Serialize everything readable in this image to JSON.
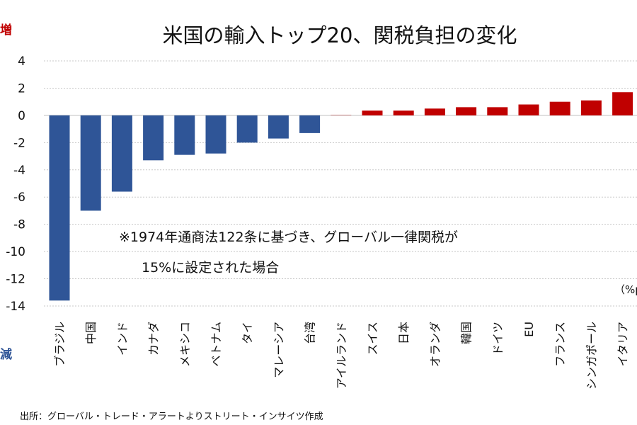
{
  "chart_data": {
    "type": "bar",
    "title": "米国の輸入トップ20、関税負担の変化",
    "unit_label": "（%p）",
    "label_increase": "増",
    "label_decrease": "減",
    "annotation_line1": "※1974年通商法122条に基づき、グローバル一律関税が",
    "annotation_line2": "15%に設定された場合",
    "source": "出所：グローバル・トレード・アラートよりストリート・インサイツ作成",
    "ylim": [
      -14,
      4
    ],
    "yticks": [
      4,
      2,
      0,
      -2,
      -4,
      -6,
      -8,
      -10,
      -12,
      -14
    ],
    "grid": true,
    "colors": {
      "negative": "#2f5597",
      "positive": "#c00000",
      "increase_label": "#c00000",
      "decrease_label": "#2f5597"
    },
    "categories": [
      "ブラジル",
      "中国",
      "インド",
      "カナダ",
      "メキシコ",
      "ベトナム",
      "タイ",
      "マレーシア",
      "台湾",
      "アイルランド",
      "スイス",
      "日本",
      "オランダ",
      "韓国",
      "ドイツ",
      "EU",
      "フランス",
      "シンガポール",
      "イタリア"
    ],
    "values": [
      -13.6,
      -7.0,
      -5.6,
      -3.3,
      -2.9,
      -2.8,
      -2.0,
      -1.7,
      -1.3,
      0.05,
      0.35,
      0.35,
      0.5,
      0.6,
      0.6,
      0.8,
      1.0,
      1.1,
      1.7
    ]
  }
}
